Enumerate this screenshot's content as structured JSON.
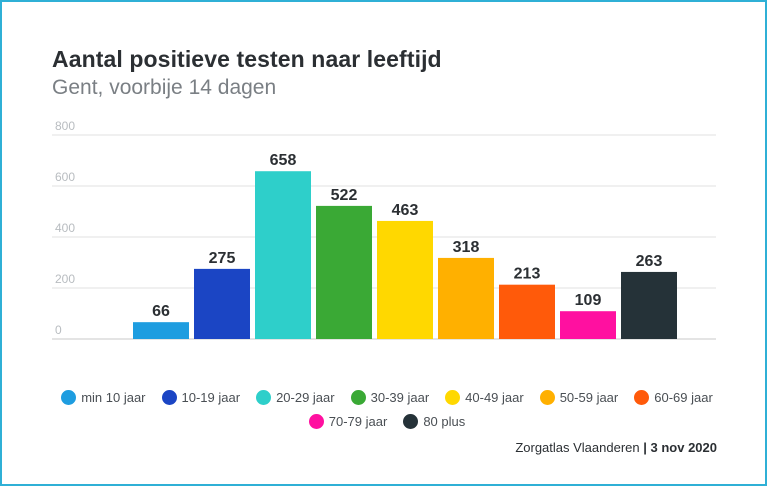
{
  "chart_data": {
    "type": "bar",
    "title": "Aantal positieve testen naar leeftijd",
    "subtitle": "Gent, voorbije 14 dagen",
    "categories": [
      "min 10 jaar",
      "10-19 jaar",
      "20-29 jaar",
      "30-39 jaar",
      "40-49 jaar",
      "50-59 jaar",
      "60-69 jaar",
      "70-79 jaar",
      "80 plus"
    ],
    "values": [
      66,
      275,
      658,
      522,
      463,
      318,
      213,
      109,
      263
    ],
    "colors": [
      "#1e9de0",
      "#1b45c4",
      "#2ecfca",
      "#3aa935",
      "#ffd800",
      "#ffb000",
      "#ff5a0a",
      "#ff10a0",
      "#253238"
    ],
    "ylim": [
      0,
      800
    ],
    "yticks": [
      0,
      200,
      400,
      600,
      800
    ],
    "ytick_labels": [
      "0",
      "200",
      "400",
      "600",
      "800"
    ],
    "xlabel": "",
    "ylabel": "",
    "grid": true,
    "legend_position": "bottom"
  },
  "source": {
    "name": "Zorgatlas Vlaanderen",
    "separator": " | ",
    "date": "3 nov 2020"
  }
}
